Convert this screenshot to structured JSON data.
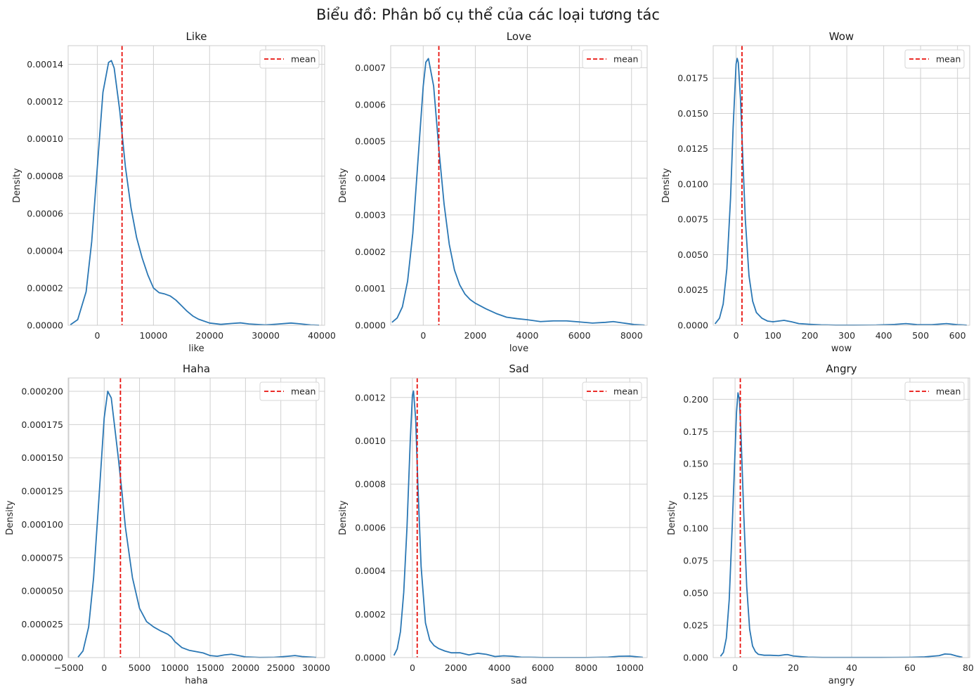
{
  "figure": {
    "title": "Biểu đồ: Phân bố cụ thể của các loại tương tác"
  },
  "colors": {
    "curve": "#2a77b4",
    "mean_line": "#e8100c",
    "grid": "#d0d0d0",
    "frame": "#cccccc"
  },
  "chart_data": [
    {
      "type": "line",
      "title": "Like",
      "xlabel": "like",
      "ylabel": "Density",
      "xlim": [
        -5200,
        40500
      ],
      "ylim": [
        0,
        0.00015
      ],
      "xticks": [
        0,
        10000,
        20000,
        30000,
        40000
      ],
      "xtick_labels": [
        "0",
        "10000",
        "20000",
        "30000",
        "40000"
      ],
      "yticks": [
        0,
        2e-05,
        4e-05,
        6e-05,
        8e-05,
        0.0001,
        0.00012,
        0.00014
      ],
      "ytick_labels": [
        "0.00000",
        "0.00002",
        "0.00004",
        "0.00006",
        "0.00008",
        "0.00010",
        "0.00012",
        "0.00014"
      ],
      "grid": true,
      "legend": {
        "position": "top-right",
        "entries": [
          "mean"
        ]
      },
      "mean": 4400,
      "series": [
        {
          "x": [
            -4800,
            -3500,
            -2000,
            -1000,
            0,
            1000,
            2000,
            2500,
            3000,
            4000,
            5000,
            6000,
            7000,
            8000,
            9000,
            10000,
            11000,
            12000,
            13000,
            14000,
            15000,
            16000,
            17000,
            18000,
            20000,
            22000,
            24000,
            25500,
            27000,
            30000,
            32000,
            34500,
            36000,
            38000,
            39500
          ],
          "y": [
            3e-07,
            3e-06,
            1.8e-05,
            4.5e-05,
            8.5e-05,
            0.000125,
            0.000141,
            0.000142,
            0.000138,
            0.000115,
            8.5e-05,
            6.3e-05,
            4.7e-05,
            3.6e-05,
            2.7e-05,
            2e-05,
            1.75e-05,
            1.68e-05,
            1.57e-05,
            1.35e-05,
            1.05e-05,
            7.5e-06,
            5e-06,
            3.3e-06,
            1.2e-06,
            5e-07,
            1e-06,
            1.3e-06,
            7e-07,
            2e-07,
            6e-07,
            1.2e-06,
            8e-07,
            2e-07,
            5e-08
          ]
        }
      ]
    },
    {
      "type": "line",
      "title": "Love",
      "xlabel": "love",
      "ylabel": "Density",
      "xlim": [
        -1250,
        8600
      ],
      "ylim": [
        0,
        0.00076
      ],
      "xticks": [
        0,
        2000,
        4000,
        6000,
        8000
      ],
      "xtick_labels": [
        "0",
        "2000",
        "4000",
        "6000",
        "8000"
      ],
      "yticks": [
        0,
        0.0001,
        0.0002,
        0.0003,
        0.0004,
        0.0005,
        0.0006,
        0.0007
      ],
      "ytick_labels": [
        "0.0000",
        "0.0001",
        "0.0002",
        "0.0003",
        "0.0004",
        "0.0005",
        "0.0006",
        "0.0007"
      ],
      "grid": true,
      "legend": {
        "position": "top-right",
        "entries": [
          "mean"
        ]
      },
      "mean": 600,
      "series": [
        {
          "x": [
            -1200,
            -1000,
            -800,
            -600,
            -400,
            -200,
            0,
            100,
            200,
            400,
            600,
            800,
            1000,
            1200,
            1400,
            1600,
            1800,
            2000,
            2400,
            2800,
            3200,
            3600,
            4000,
            4500,
            5000,
            5500,
            6000,
            6500,
            7000,
            7300,
            7700,
            8100,
            8500
          ],
          "y": [
            8e-06,
            2e-05,
            5e-05,
            0.00012,
            0.00025,
            0.00045,
            0.00065,
            0.000715,
            0.000725,
            0.00065,
            0.00048,
            0.00033,
            0.00022,
            0.00015,
            0.00011,
            8.5e-05,
            7e-05,
            6e-05,
            4.5e-05,
            3.2e-05,
            2.2e-05,
            1.8e-05,
            1.5e-05,
            1e-05,
            1.2e-05,
            1.2e-05,
            9e-06,
            6e-06,
            8e-06,
            1e-05,
            6e-06,
            2e-06,
            5e-07
          ]
        }
      ]
    },
    {
      "type": "line",
      "title": "Wow",
      "xlabel": "wow",
      "ylabel": "Density",
      "xlim": [
        -62,
        633
      ],
      "ylim": [
        0,
        0.0198
      ],
      "xticks": [
        0,
        100,
        200,
        300,
        400,
        500,
        600
      ],
      "xtick_labels": [
        "0",
        "100",
        "200",
        "300",
        "400",
        "500",
        "600"
      ],
      "yticks": [
        0,
        0.0025,
        0.005,
        0.0075,
        0.01,
        0.0125,
        0.015,
        0.0175
      ],
      "ytick_labels": [
        "0.0000",
        "0.0025",
        "0.0050",
        "0.0075",
        "0.0100",
        "0.0125",
        "0.0150",
        "0.0175"
      ],
      "grid": true,
      "legend": {
        "position": "top-right",
        "entries": [
          "mean"
        ]
      },
      "mean": 16,
      "series": [
        {
          "x": [
            -57,
            -45,
            -35,
            -25,
            -15,
            -8,
            0,
            3,
            6,
            12,
            18,
            25,
            35,
            45,
            55,
            70,
            85,
            100,
            115,
            130,
            150,
            170,
            200,
            230,
            270,
            320,
            380,
            430,
            460,
            490,
            530,
            570,
            600,
            625
          ],
          "y": [
            0.0001,
            0.0005,
            0.0015,
            0.004,
            0.009,
            0.014,
            0.0185,
            0.0189,
            0.0186,
            0.016,
            0.012,
            0.0075,
            0.0035,
            0.0017,
            0.0009,
            0.0005,
            0.0003,
            0.00025,
            0.0003,
            0.00035,
            0.00025,
            0.00012,
            7e-05,
            3e-05,
            1e-05,
            1e-05,
            2e-05,
            6e-05,
            0.00012,
            5e-05,
            4e-05,
            0.00012,
            4e-05,
            1e-05
          ]
        }
      ]
    },
    {
      "type": "line",
      "title": "Haha",
      "xlabel": "haha",
      "ylabel": "Density",
      "xlim": [
        -5100,
        31200
      ],
      "ylim": [
        0,
        0.00021
      ],
      "xticks": [
        -5000,
        0,
        5000,
        10000,
        15000,
        20000,
        25000,
        30000
      ],
      "xtick_labels": [
        "−5000",
        "0",
        "5000",
        "10000",
        "15000",
        "20000",
        "25000",
        "30000"
      ],
      "yticks": [
        0,
        2.5e-05,
        5e-05,
        7.5e-05,
        0.0001,
        0.000125,
        0.00015,
        0.000175,
        0.0002
      ],
      "ytick_labels": [
        "0.000000",
        "0.000025",
        "0.000050",
        "0.000075",
        "0.000100",
        "0.000125",
        "0.000150",
        "0.000175",
        "0.000200"
      ],
      "grid": true,
      "legend": {
        "position": "top-right",
        "entries": [
          "mean"
        ]
      },
      "mean": 2300,
      "series": [
        {
          "x": [
            -3700,
            -3000,
            -2200,
            -1500,
            -800,
            0,
            500,
            1000,
            2000,
            2500,
            3000,
            4000,
            5000,
            6000,
            7000,
            8000,
            9000,
            9500,
            10000,
            11000,
            12000,
            13000,
            14000,
            15000,
            16000,
            17000,
            18000,
            19000,
            20000,
            22000,
            24000,
            26000,
            27000,
            28000,
            30000
          ],
          "y": [
            3e-07,
            5e-06,
            2.3e-05,
            6e-05,
            0.000115,
            0.00018,
            0.0002,
            0.000195,
            0.00015,
            0.000125,
            9.8e-05,
            6e-05,
            3.7e-05,
            2.7e-05,
            2.3e-05,
            2e-05,
            1.75e-05,
            1.55e-05,
            1.2e-05,
            7.5e-06,
            5.5e-06,
            4.5e-06,
            3.5e-06,
            1.5e-06,
            1e-06,
            2e-06,
            2.5e-06,
            1.5e-06,
            5e-07,
            1e-07,
            2e-07,
            1e-06,
            1.5e-06,
            8e-07,
            1e-07
          ]
        }
      ]
    },
    {
      "type": "line",
      "title": "Sad",
      "xlabel": "sad",
      "ylabel": "Density",
      "xlim": [
        -1000,
        10800
      ],
      "ylim": [
        0,
        0.00129
      ],
      "xticks": [
        0,
        2000,
        4000,
        6000,
        8000,
        10000
      ],
      "xtick_labels": [
        "0",
        "2000",
        "4000",
        "6000",
        "8000",
        "10000"
      ],
      "yticks": [
        0,
        0.0002,
        0.0004,
        0.0006,
        0.0008,
        0.001,
        0.0012
      ],
      "ytick_labels": [
        "0.0000",
        "0.0002",
        "0.0004",
        "0.0006",
        "0.0008",
        "0.0010",
        "0.0012"
      ],
      "grid": true,
      "legend": {
        "position": "top-right",
        "entries": [
          "mean"
        ]
      },
      "mean": 220,
      "series": [
        {
          "x": [
            -850,
            -700,
            -550,
            -400,
            -250,
            -100,
            0,
            50,
            150,
            250,
            400,
            600,
            800,
            1000,
            1200,
            1500,
            1800,
            2200,
            2600,
            3000,
            3400,
            3800,
            4200,
            4600,
            5000,
            6000,
            7000,
            8000,
            9000,
            9500,
            10000,
            10300,
            10600
          ],
          "y": [
            1e-05,
            4e-05,
            0.00012,
            0.0003,
            0.0006,
            0.001,
            0.00121,
            0.00123,
            0.0011,
            0.0008,
            0.00042,
            0.00016,
            8e-05,
            5.5e-05,
            4.2e-05,
            3e-05,
            2.2e-05,
            2.2e-05,
            1.2e-05,
            2e-05,
            1.5e-05,
            5e-06,
            8e-06,
            6e-06,
            2e-06,
            5e-07,
            5e-07,
            5e-07,
            2e-06,
            6e-06,
            7e-06,
            4e-06,
            1e-06
          ]
        }
      ]
    },
    {
      "type": "line",
      "title": "Angry",
      "xlabel": "angry",
      "ylabel": "Density",
      "xlim": [
        -7.5,
        80.5
      ],
      "ylim": [
        0,
        0.2165
      ],
      "xticks": [
        0,
        20,
        40,
        60,
        80
      ],
      "xtick_labels": [
        "0",
        "20",
        "40",
        "60",
        "80"
      ],
      "yticks": [
        0,
        0.025,
        0.05,
        0.075,
        0.1,
        0.125,
        0.15,
        0.175,
        0.2
      ],
      "ytick_labels": [
        "0.000",
        "0.025",
        "0.050",
        "0.075",
        "0.100",
        "0.125",
        "0.150",
        "0.175",
        "0.200"
      ],
      "grid": true,
      "legend": {
        "position": "top-right",
        "entries": [
          "mean"
        ]
      },
      "mean": 1.8,
      "series": [
        {
          "x": [
            -5,
            -4,
            -3,
            -2,
            -1,
            0,
            0.5,
            1,
            1.5,
            2,
            3,
            4,
            5,
            6,
            7,
            8,
            10,
            12,
            15,
            17,
            18,
            20,
            25,
            30,
            40,
            50,
            60,
            65,
            70,
            72,
            74,
            76,
            78
          ],
          "y": [
            0.001,
            0.004,
            0.015,
            0.045,
            0.1,
            0.16,
            0.19,
            0.205,
            0.2,
            0.175,
            0.11,
            0.055,
            0.022,
            0.009,
            0.0045,
            0.0025,
            0.0018,
            0.0018,
            0.0015,
            0.0022,
            0.0023,
            0.0012,
            0.0003,
            0.0001,
            0.0001,
            0.0001,
            0.0002,
            0.0005,
            0.0015,
            0.0028,
            0.0025,
            0.0012,
            0.0003
          ]
        }
      ]
    }
  ]
}
